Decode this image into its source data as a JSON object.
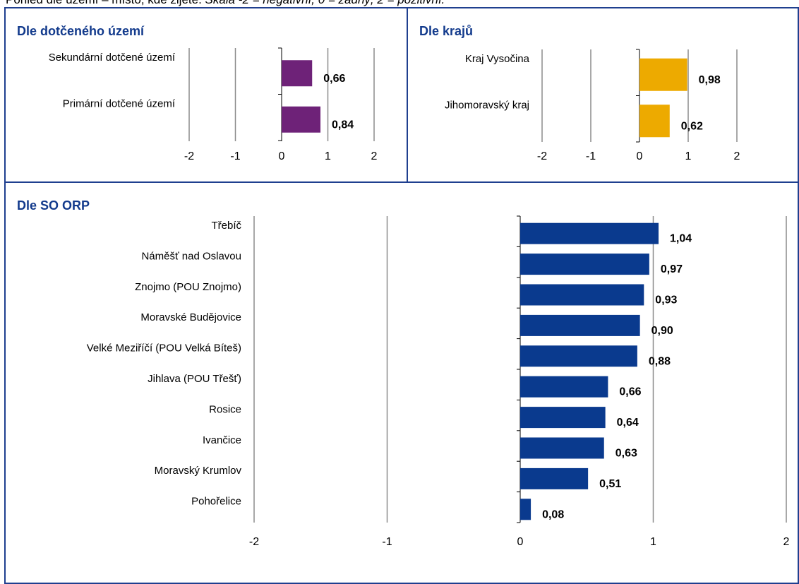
{
  "caption": {
    "text": "Pohled dle území – místo, kde žijete.",
    "italic": "Škála -2 = negativní, 0 = žádný, 2 = pozitivní."
  },
  "panels": {
    "area": {
      "title": "Dle dotčeného území"
    },
    "regions": {
      "title": "Dle krajů"
    },
    "orp": {
      "title": "Dle SO ORP"
    }
  },
  "chart_data": [
    {
      "type": "bar",
      "orientation": "horizontal",
      "title": "Dle dotčeného území",
      "categories": [
        "Sekundární dotčené území",
        "Primární dotčené území"
      ],
      "values": [
        0.66,
        0.84
      ],
      "value_labels": [
        "0,66",
        "0,84"
      ],
      "xlim": [
        -2,
        2
      ],
      "xticks": [
        "-2",
        "-1",
        "0",
        "1",
        "2"
      ],
      "grid": true,
      "color": "#6e2278"
    },
    {
      "type": "bar",
      "orientation": "horizontal",
      "title": "Dle krajů",
      "categories": [
        "Kraj Vysočina",
        "Jihomoravský kraj"
      ],
      "values": [
        0.98,
        0.62
      ],
      "value_labels": [
        "0,98",
        "0,62"
      ],
      "xlim": [
        -2,
        2
      ],
      "xticks": [
        "-2",
        "-1",
        "0",
        "1",
        "2"
      ],
      "grid": true,
      "color": "#edaa00"
    },
    {
      "type": "bar",
      "orientation": "horizontal",
      "title": "Dle SO ORP",
      "categories": [
        "Třebíč",
        "Náměšť nad Oslavou",
        "Znojmo (POU Znojmo)",
        "Moravské Budějovice",
        "Velké Meziříčí (POU Velká Bíteš)",
        "Jihlava (POU Třešť)",
        "Rosice",
        "Ivančice",
        "Moravský Krumlov",
        "Pohořelice"
      ],
      "values": [
        1.04,
        0.97,
        0.93,
        0.9,
        0.88,
        0.66,
        0.64,
        0.63,
        0.51,
        0.08
      ],
      "value_labels": [
        "1,04",
        "0,97",
        "0,93",
        "0,90",
        "0,88",
        "0,66",
        "0,64",
        "0,63",
        "0,51",
        "0,08"
      ],
      "xlim": [
        -2,
        2
      ],
      "xticks": [
        "-2",
        "-1",
        "0",
        "1",
        "2"
      ],
      "grid": true,
      "color": "#0a3a8e"
    }
  ]
}
